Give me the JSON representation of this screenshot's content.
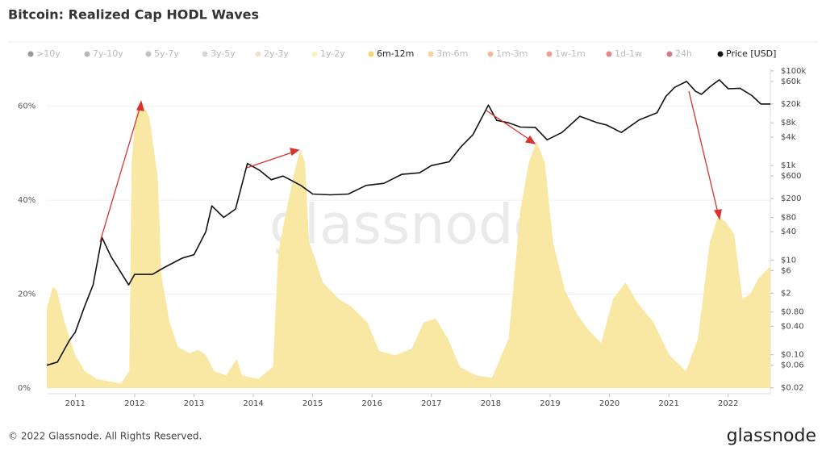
{
  "chart_data": {
    "type": "area",
    "title": "Bitcoin: Realized Cap HODL Waves",
    "watermark": "glassnode",
    "footer": "© 2022 Glassnode. All Rights Reserved.",
    "brand": "glassnode",
    "legend_items": [
      {
        "name": ">10y",
        "color": "#555555",
        "active": false
      },
      {
        "name": "7y-10y",
        "color": "#888888",
        "active": false
      },
      {
        "name": "5y-7y",
        "color": "#999999",
        "active": false
      },
      {
        "name": "3y-5y",
        "color": "#bbbbbb",
        "active": false
      },
      {
        "name": "2y-3y",
        "color": "#e8d2a0",
        "active": false
      },
      {
        "name": "1y-2y",
        "color": "#f7ec9a",
        "active": false
      },
      {
        "name": "6m-12m",
        "color": "#f5d76e",
        "active": true
      },
      {
        "name": "3m-6m",
        "color": "#f0b85a",
        "active": false
      },
      {
        "name": "1m-3m",
        "color": "#ec8c5c",
        "active": false
      },
      {
        "name": "1w-1m",
        "color": "#e25d4e",
        "active": false
      },
      {
        "name": "1d-1w",
        "color": "#d9343a",
        "active": false
      },
      {
        "name": "24h",
        "color": "#b0242c",
        "active": false
      },
      {
        "name": "Price [USD]",
        "color": "#111111",
        "active": true
      }
    ],
    "xlim": [
      2010.52,
      2022.71
    ],
    "xticks": [
      2011,
      2012,
      2013,
      2014,
      2015,
      2016,
      2017,
      2018,
      2019,
      2020,
      2021,
      2022
    ],
    "ylim": [
      -1.2,
      68
    ],
    "yticks": [
      {
        "value": 0,
        "label": "0%"
      },
      {
        "value": 20,
        "label": "20%"
      },
      {
        "value": 40,
        "label": "40%"
      },
      {
        "value": 60,
        "label": "60%"
      }
    ],
    "y2lim": [
      0.015,
      112000
    ],
    "y2scale": "log",
    "y2ticks": [
      {
        "value": 100000,
        "label": "$100k"
      },
      {
        "value": 60000,
        "label": "$60k"
      },
      {
        "value": 20000,
        "label": "$20k"
      },
      {
        "value": 8000,
        "label": "$8k"
      },
      {
        "value": 4000,
        "label": "$4k"
      },
      {
        "value": 1000,
        "label": "$1k"
      },
      {
        "value": 600,
        "label": "$600"
      },
      {
        "value": 200,
        "label": "$200"
      },
      {
        "value": 80,
        "label": "$80"
      },
      {
        "value": 40,
        "label": "$40"
      },
      {
        "value": 10,
        "label": "$10"
      },
      {
        "value": 6,
        "label": "$6"
      },
      {
        "value": 2,
        "label": "$2"
      },
      {
        "value": 0.8,
        "label": "$0.80"
      },
      {
        "value": 0.4,
        "label": "$0.40"
      },
      {
        "value": 0.1,
        "label": "$0.10"
      },
      {
        "value": 0.06,
        "label": "$0.06"
      },
      {
        "value": 0.02,
        "label": "$0.02"
      }
    ],
    "grid": true,
    "series": [
      {
        "name": "6m-12m",
        "color": "#f9e8a3",
        "axis": "y",
        "x": [
          2010.52,
          2010.62,
          2010.69,
          2010.82,
          2011.0,
          2011.16,
          2011.37,
          2011.77,
          2011.91,
          2011.95,
          2012.02,
          2012.11,
          2012.25,
          2012.39,
          2012.45,
          2012.59,
          2012.73,
          2012.93,
          2013.07,
          2013.2,
          2013.34,
          2013.54,
          2013.72,
          2013.81,
          2014.08,
          2014.33,
          2014.42,
          2014.56,
          2014.7,
          2014.79,
          2014.87,
          2014.94,
          2015.04,
          2015.17,
          2015.44,
          2015.65,
          2015.92,
          2016.12,
          2016.39,
          2016.67,
          2016.87,
          2017.07,
          2017.28,
          2017.48,
          2017.75,
          2018.02,
          2018.3,
          2018.5,
          2018.64,
          2018.77,
          2018.91,
          2019.05,
          2019.25,
          2019.46,
          2019.66,
          2019.86,
          2020.06,
          2020.27,
          2020.47,
          2020.74,
          2021.01,
          2021.29,
          2021.49,
          2021.69,
          2021.83,
          2021.96,
          2022.1,
          2022.24,
          2022.37,
          2022.51,
          2022.71
        ],
        "values": [
          17,
          21.6,
          20.8,
          14,
          7,
          3.6,
          1.9,
          1,
          3.6,
          48,
          58,
          61,
          57.6,
          44.8,
          24,
          14,
          8.7,
          7.4,
          8.2,
          7,
          3.6,
          2.7,
          6.2,
          2.7,
          1.9,
          4.5,
          29,
          38,
          46.5,
          50.8,
          48,
          31,
          27.6,
          22.5,
          19,
          17.3,
          14,
          7.9,
          7,
          8.4,
          14,
          14.8,
          10.5,
          4.5,
          2.7,
          2.2,
          10.5,
          38,
          48,
          52.5,
          48,
          31,
          20.8,
          15.6,
          12.2,
          9.6,
          19,
          22.5,
          18.2,
          14,
          7,
          3.6,
          10.5,
          31,
          36.5,
          35.3,
          32.8,
          19,
          20,
          23.3,
          26
        ]
      },
      {
        "name": "Price [USD]",
        "color": "#111111",
        "axis": "y2",
        "x": [
          2010.52,
          2010.7,
          2010.9,
          2011.0,
          2011.15,
          2011.3,
          2011.45,
          2011.6,
          2011.9,
          2012.0,
          2012.3,
          2012.5,
          2012.8,
          2013.0,
          2013.2,
          2013.3,
          2013.5,
          2013.7,
          2013.9,
          2014.1,
          2014.3,
          2014.5,
          2014.8,
          2015.0,
          2015.3,
          2015.6,
          2015.9,
          2016.2,
          2016.5,
          2016.8,
          2017.0,
          2017.3,
          2017.5,
          2017.7,
          2017.96,
          2018.1,
          2018.3,
          2018.5,
          2018.75,
          2018.95,
          2019.2,
          2019.5,
          2019.8,
          2019.95,
          2020.2,
          2020.5,
          2020.8,
          2020.95,
          2021.1,
          2021.3,
          2021.45,
          2021.55,
          2021.7,
          2021.85,
          2022.0,
          2022.2,
          2022.4,
          2022.55,
          2022.71
        ],
        "values": [
          0.06,
          0.07,
          0.2,
          0.3,
          1,
          3,
          30,
          12,
          3,
          5,
          5,
          7,
          11,
          13,
          40,
          140,
          80,
          120,
          1100,
          800,
          500,
          600,
          380,
          250,
          240,
          250,
          380,
          420,
          650,
          700,
          1000,
          1200,
          2500,
          4500,
          19000,
          9000,
          8000,
          6500,
          6400,
          3500,
          5000,
          11000,
          8000,
          7200,
          5000,
          9200,
          13000,
          29000,
          45000,
          60000,
          37000,
          32000,
          47000,
          65000,
          42000,
          43000,
          30000,
          20000,
          20000
        ]
      }
    ]
  }
}
